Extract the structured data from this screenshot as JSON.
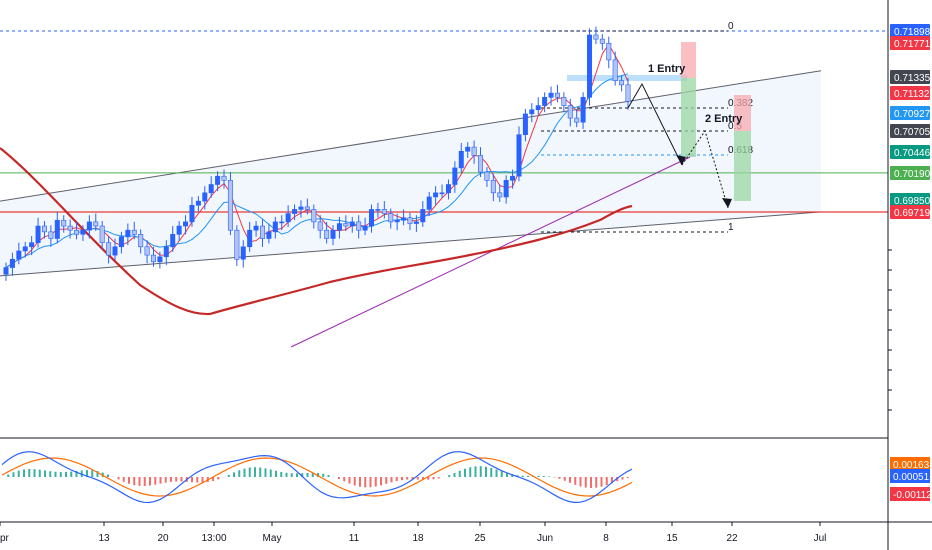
{
  "chart_data": {
    "type": "candlestick",
    "price_axis": {
      "ticks": [
        "0.71898",
        "0.71771",
        "0.71335",
        "0.71132",
        "0.70927",
        "0.70705",
        "0.70446",
        "0.70190",
        "0.69850",
        "0.69719"
      ],
      "current_price": "0.71132"
    },
    "price_levels": [
      {
        "value": 0.71898,
        "color": "#2962ff"
      },
      {
        "value": 0.71771,
        "color": "#f23645"
      },
      {
        "value": 0.71335,
        "color": "#434651"
      },
      {
        "value": 0.71132,
        "color": "#f23645"
      },
      {
        "value": 0.70927,
        "color": "#2196f3"
      },
      {
        "value": 0.70705,
        "color": "#434651"
      },
      {
        "value": 0.70446,
        "color": "#089981"
      },
      {
        "value": 0.7019,
        "color": "#4caf50"
      },
      {
        "value": 0.6985,
        "color": "#089981"
      },
      {
        "value": 0.69719,
        "color": "#f23645"
      }
    ],
    "time_axis": {
      "ticks": [
        {
          "label": "pr",
          "day": 0
        },
        {
          "label": "13",
          "day": 12
        },
        {
          "label": "20",
          "day": 19
        },
        {
          "label": "13:00",
          "day": 25
        },
        {
          "label": "May",
          "day": 30
        },
        {
          "label": "11",
          "day": 40
        },
        {
          "label": "18",
          "day": 47
        },
        {
          "label": "25",
          "day": 54
        },
        {
          "label": "Jun",
          "day": 61
        },
        {
          "label": "8",
          "day": 68
        },
        {
          "label": "15",
          "day": 75
        },
        {
          "label": "22",
          "day": 82
        },
        {
          "label": "Jul",
          "day": 91
        }
      ]
    },
    "ohlc_close": [
      0.6905,
      0.6915,
      0.6925,
      0.693,
      0.6935,
      0.6955,
      0.6948,
      0.694,
      0.6962,
      0.6955,
      0.695,
      0.6945,
      0.695,
      0.696,
      0.6955,
      0.6935,
      0.692,
      0.693,
      0.6942,
      0.695,
      0.6945,
      0.693,
      0.692,
      0.6912,
      0.6918,
      0.693,
      0.6945,
      0.6955,
      0.696,
      0.698,
      0.6985,
      0.6995,
      0.7005,
      0.7015,
      0.701,
      0.695,
      0.6915,
      0.693,
      0.695,
      0.6955,
      0.694,
      0.6948,
      0.696,
      0.696,
      0.697,
      0.6975,
      0.6978,
      0.6975,
      0.696,
      0.695,
      0.694,
      0.695,
      0.6958,
      0.6955,
      0.696,
      0.695,
      0.6955,
      0.6975,
      0.6975,
      0.697,
      0.696,
      0.6962,
      0.6965,
      0.6958,
      0.696,
      0.6975,
      0.699,
      0.6995,
      0.6995,
      0.7005,
      0.7025,
      0.7045,
      0.705,
      0.704,
      0.702,
      0.701,
      0.6995,
      0.699,
      0.701,
      0.7015,
      0.7065,
      0.709,
      0.7095,
      0.71,
      0.711,
      0.7115,
      0.711,
      0.71,
      0.7085,
      0.708,
      0.711,
      0.7185,
      0.718,
      0.7175,
      0.7155,
      0.713,
      0.7125,
      0.7105
    ],
    "overlays": {
      "moving_averages": [
        {
          "color": "#f23645",
          "role": "fast"
        },
        {
          "color": "#2196f3",
          "role": "medium"
        },
        {
          "color": "#c62828",
          "role": "slow"
        }
      ],
      "channel": {
        "upper_start": 0.6985,
        "upper_end": 0.7142,
        "lower_start": 0.6895,
        "lower_end": 0.6972
      },
      "fib_levels": [
        "0",
        "0.382",
        "0.5",
        "0.618",
        "1"
      ],
      "entries": [
        "1 Entry",
        "2 Entry"
      ]
    },
    "macd_axis": {
      "ticks": [
        "0.00163",
        "0.00051",
        "-0.00112"
      ]
    },
    "title": "",
    "xlabel": "",
    "ylabel": "",
    "grid": false,
    "legend": "none"
  }
}
